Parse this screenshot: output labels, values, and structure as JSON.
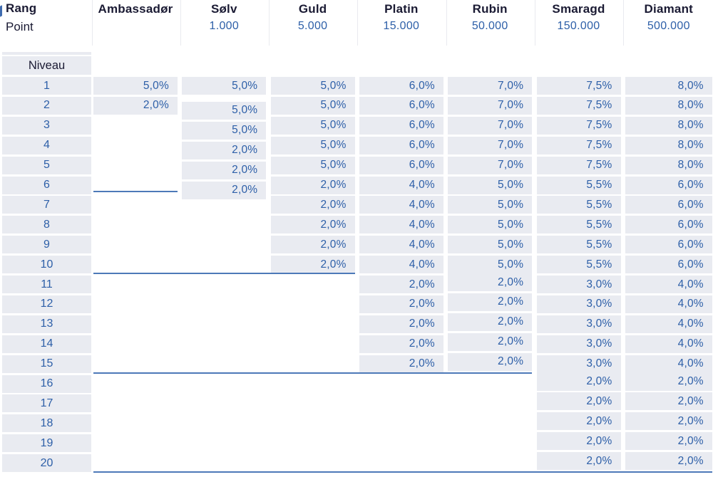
{
  "header": {
    "rang_label": "Rang",
    "point_label": "Point",
    "niveau_label": "Niveau"
  },
  "tiers": [
    {
      "name": "Ambassadør",
      "point": "",
      "cells": [
        {
          "rows": [
            1,
            1
          ],
          "value": "5,0%"
        },
        {
          "rows": [
            2,
            2
          ],
          "value": "2,0%"
        }
      ]
    },
    {
      "name": "Sølv",
      "point": "1.000",
      "cells": [
        {
          "rows": [
            1,
            3
          ],
          "value": "5,0%"
        },
        {
          "rows": [
            4,
            6
          ],
          "value": "2,0%"
        }
      ]
    },
    {
      "name": "Guld",
      "point": "5.000",
      "cells": [
        {
          "rows": [
            1,
            5
          ],
          "value": "5,0%"
        },
        {
          "rows": [
            6,
            10
          ],
          "value": "2,0%"
        }
      ]
    },
    {
      "name": "Platin",
      "point": "15.000",
      "cells": [
        {
          "rows": [
            1,
            5
          ],
          "value": "6,0%"
        },
        {
          "rows": [
            6,
            10
          ],
          "value": "4,0%"
        },
        {
          "rows": [
            11,
            15
          ],
          "value": "2,0%"
        }
      ]
    },
    {
      "name": "Rubin",
      "point": "50.000",
      "cells": [
        {
          "rows": [
            1,
            5
          ],
          "value": "7,0%"
        },
        {
          "rows": [
            6,
            10
          ],
          "value": "5,0%"
        },
        {
          "rows": [
            11,
            15
          ],
          "value": "2,0%"
        }
      ]
    },
    {
      "name": "Smaragd",
      "point": "150.000",
      "cells": [
        {
          "rows": [
            1,
            5
          ],
          "value": "7,5%"
        },
        {
          "rows": [
            6,
            10
          ],
          "value": "5,5%"
        },
        {
          "rows": [
            11,
            15
          ],
          "value": "3,0%"
        },
        {
          "rows": [
            16,
            20
          ],
          "value": "2,0%"
        }
      ]
    },
    {
      "name": "Diamant",
      "point": "500.000",
      "cells": [
        {
          "rows": [
            1,
            5
          ],
          "value": "8,0%"
        },
        {
          "rows": [
            6,
            10
          ],
          "value": "6,0%"
        },
        {
          "rows": [
            11,
            15
          ],
          "value": "4,0%"
        },
        {
          "rows": [
            16,
            20
          ],
          "value": "2,0%"
        }
      ]
    }
  ],
  "niveau_rows": [
    "1",
    "2",
    "3",
    "4",
    "5",
    "6",
    "7",
    "8",
    "9",
    "10",
    "11",
    "12",
    "13",
    "14",
    "15",
    "16",
    "17",
    "18",
    "19",
    "20"
  ],
  "colors": {
    "header_text": "#1a1a33",
    "value_text": "#2d5fa8",
    "cell_bg": "#e9ebf1",
    "line_color": "#4d79b8"
  }
}
